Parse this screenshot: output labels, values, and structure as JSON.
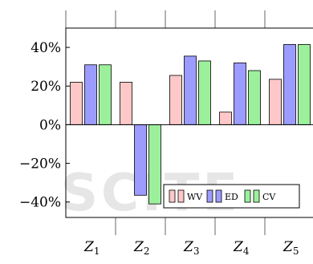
{
  "watermark": "SCITE",
  "chart_data": {
    "type": "bar",
    "title": "",
    "xlabel": "",
    "ylabel": "",
    "categories": [
      {
        "base": "Z",
        "sub": "1"
      },
      {
        "base": "Z",
        "sub": "2"
      },
      {
        "base": "Z",
        "sub": "3"
      },
      {
        "base": "Z",
        "sub": "4"
      },
      {
        "base": "Z",
        "sub": "5"
      }
    ],
    "series": [
      {
        "name": "WV",
        "color": "#ffc8c8",
        "values": [
          22,
          22,
          25.5,
          6.5,
          23.5
        ]
      },
      {
        "name": "ED",
        "color": "#9c9cff",
        "values": [
          31,
          -36.5,
          35.5,
          32,
          41.5
        ]
      },
      {
        "name": "CV",
        "color": "#9cf09c",
        "values": [
          31,
          -41,
          33,
          28,
          41.5
        ]
      }
    ],
    "ylim": [
      -48,
      50
    ],
    "yticks": [
      -40,
      -20,
      0,
      20,
      40
    ],
    "ytick_labels": [
      "−40%",
      "−20%",
      "0%",
      "20%",
      "40%"
    ],
    "grid": false,
    "legend_position": "bottom-right"
  }
}
